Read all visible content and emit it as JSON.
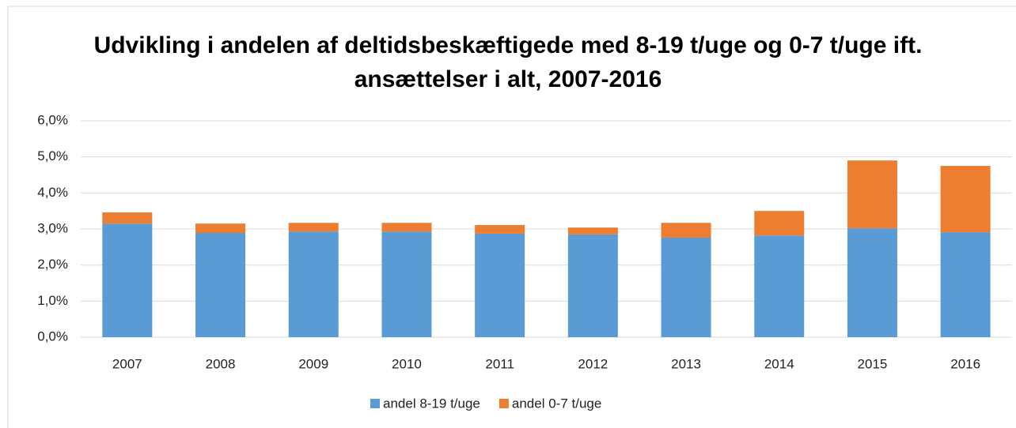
{
  "chart_data": {
    "type": "bar",
    "stacked": true,
    "title": "Udvikling i andelen af deltidsbeskæftigede med 8-19 t/uge og 0-7 t/uge ift. ansættelser i alt, 2007-2016",
    "categories": [
      "2007",
      "2008",
      "2009",
      "2010",
      "2011",
      "2012",
      "2013",
      "2014",
      "2015",
      "2016"
    ],
    "series": [
      {
        "name": "andel 8-19 t/uge",
        "color": "#5b9bd5",
        "values": [
          3.15,
          2.89,
          2.93,
          2.93,
          2.87,
          2.85,
          2.76,
          2.82,
          3.02,
          2.91
        ]
      },
      {
        "name": "andel 0-7 t/uge",
        "color": "#ed7d31",
        "values": [
          0.31,
          0.26,
          0.24,
          0.24,
          0.24,
          0.19,
          0.41,
          0.68,
          1.88,
          1.84
        ]
      }
    ],
    "ylim": [
      0,
      6
    ],
    "yticks": [
      {
        "value": 0,
        "label": "0,0%"
      },
      {
        "value": 1,
        "label": "1,0%"
      },
      {
        "value": 2,
        "label": "2,0%"
      },
      {
        "value": 3,
        "label": "3,0%"
      },
      {
        "value": 4,
        "label": "4,0%"
      },
      {
        "value": 5,
        "label": "5,0%"
      },
      {
        "value": 6,
        "label": "6,0%"
      }
    ],
    "grid": true,
    "legend": "bottom"
  }
}
